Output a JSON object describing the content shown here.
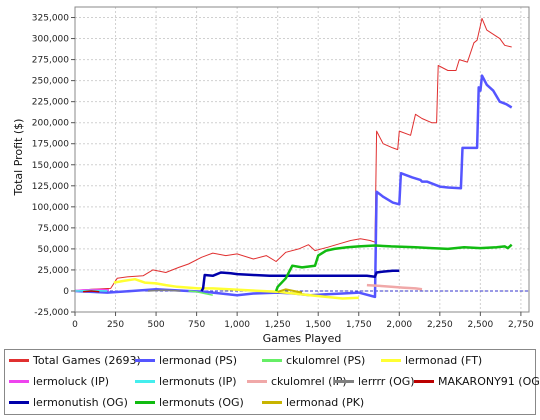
{
  "chart_data": {
    "type": "line",
    "xlabel": "Games Played",
    "ylabel": "Total Profit ($)",
    "xlim": [
      0,
      2800
    ],
    "ylim": [
      -25000,
      337500
    ],
    "x_ticks": [
      0,
      250,
      500,
      750,
      1000,
      1250,
      1500,
      1750,
      2000,
      2250,
      2500,
      2750
    ],
    "x_tick_labels": [
      "0",
      "250",
      "500",
      "750",
      "1,000",
      "1,250",
      "1,500",
      "1,750",
      "2,000",
      "2,250",
      "2,500",
      "2,750"
    ],
    "y_ticks": [
      -25000,
      0,
      25000,
      50000,
      75000,
      100000,
      125000,
      150000,
      175000,
      200000,
      225000,
      250000,
      275000,
      300000,
      325000
    ],
    "y_tick_labels": [
      "-25,000",
      "0",
      "25,000",
      "50,000",
      "75,000",
      "100,000",
      "125,000",
      "150,000",
      "175,000",
      "200,000",
      "225,000",
      "250,000",
      "275,000",
      "300,000",
      "325,000"
    ],
    "grid": true,
    "legend_position": "bottom",
    "series": [
      {
        "name": "Total Games (2693)",
        "color": "#e03030",
        "width": 1,
        "points": [
          [
            0,
            0
          ],
          [
            100,
            2000
          ],
          [
            220,
            3000
          ],
          [
            260,
            15000
          ],
          [
            330,
            17000
          ],
          [
            420,
            18000
          ],
          [
            480,
            25000
          ],
          [
            560,
            22000
          ],
          [
            640,
            28000
          ],
          [
            700,
            32000
          ],
          [
            780,
            40000
          ],
          [
            850,
            45000
          ],
          [
            930,
            42000
          ],
          [
            1000,
            44000
          ],
          [
            1100,
            38000
          ],
          [
            1180,
            42000
          ],
          [
            1240,
            35000
          ],
          [
            1300,
            46000
          ],
          [
            1380,
            50000
          ],
          [
            1440,
            55000
          ],
          [
            1480,
            48000
          ],
          [
            1560,
            52000
          ],
          [
            1630,
            56000
          ],
          [
            1700,
            60000
          ],
          [
            1760,
            62000
          ],
          [
            1820,
            60000
          ],
          [
            1850,
            58000
          ],
          [
            1860,
            190000
          ],
          [
            1900,
            175000
          ],
          [
            1960,
            170000
          ],
          [
            1990,
            168000
          ],
          [
            2000,
            190000
          ],
          [
            2070,
            185000
          ],
          [
            2100,
            210000
          ],
          [
            2140,
            205000
          ],
          [
            2200,
            200000
          ],
          [
            2230,
            200000
          ],
          [
            2240,
            268000
          ],
          [
            2300,
            262000
          ],
          [
            2350,
            262000
          ],
          [
            2370,
            275000
          ],
          [
            2420,
            272000
          ],
          [
            2460,
            295000
          ],
          [
            2480,
            298000
          ],
          [
            2510,
            324000
          ],
          [
            2540,
            310000
          ],
          [
            2580,
            305000
          ],
          [
            2620,
            300000
          ],
          [
            2650,
            292000
          ],
          [
            2693,
            290000
          ]
        ]
      },
      {
        "name": "lermonad (PS)",
        "color": "#5555ff",
        "width": 2.5,
        "points": [
          [
            0,
            0
          ],
          [
            200,
            -2000
          ],
          [
            350,
            0
          ],
          [
            500,
            2000
          ],
          [
            700,
            0
          ],
          [
            800,
            -1000
          ],
          [
            900,
            -3000
          ],
          [
            1000,
            -5000
          ],
          [
            1100,
            -3000
          ],
          [
            1250,
            -2000
          ],
          [
            1350,
            -3000
          ],
          [
            1450,
            -5000
          ],
          [
            1550,
            -4000
          ],
          [
            1650,
            -3000
          ],
          [
            1750,
            -2000
          ],
          [
            1830,
            -6000
          ],
          [
            1850,
            -7000
          ],
          [
            1860,
            118000
          ],
          [
            1900,
            112000
          ],
          [
            1960,
            105000
          ],
          [
            2000,
            103000
          ],
          [
            2010,
            140000
          ],
          [
            2080,
            135000
          ],
          [
            2130,
            132000
          ],
          [
            2140,
            130000
          ],
          [
            2170,
            130000
          ],
          [
            2250,
            124000
          ],
          [
            2300,
            123000
          ],
          [
            2380,
            122000
          ],
          [
            2390,
            170000
          ],
          [
            2420,
            170000
          ],
          [
            2480,
            170000
          ],
          [
            2490,
            242000
          ],
          [
            2500,
            238000
          ],
          [
            2510,
            256000
          ],
          [
            2540,
            245000
          ],
          [
            2580,
            238000
          ],
          [
            2620,
            225000
          ],
          [
            2660,
            222000
          ],
          [
            2693,
            218000
          ]
        ]
      },
      {
        "name": "ckulomrel (PS)",
        "color": "#66ee66",
        "width": 1.5,
        "points": [
          [
            700,
            0
          ],
          [
            750,
            -1000
          ],
          [
            800,
            -3000
          ],
          [
            850,
            -5000
          ]
        ]
      },
      {
        "name": "lermonad (FT)",
        "color": "#ffff33",
        "width": 2.5,
        "points": [
          [
            240,
            10000
          ],
          [
            300,
            12000
          ],
          [
            370,
            14000
          ],
          [
            430,
            10000
          ],
          [
            500,
            9000
          ],
          [
            560,
            7000
          ],
          [
            630,
            5000
          ],
          [
            700,
            4000
          ],
          [
            760,
            3000
          ],
          [
            850,
            3000
          ],
          [
            950,
            2000
          ],
          [
            1050,
            1000
          ],
          [
            1150,
            0
          ],
          [
            1250,
            -1000
          ],
          [
            1350,
            -3000
          ],
          [
            1450,
            -5000
          ],
          [
            1550,
            -7000
          ],
          [
            1650,
            -9000
          ],
          [
            1750,
            -8000
          ]
        ]
      },
      {
        "name": "lermoluck (IP)",
        "color": "#ee44ee",
        "width": 2,
        "points": [
          [
            0,
            0
          ],
          [
            50,
            1000
          ],
          [
            150,
            1500
          ],
          [
            210,
            1000
          ]
        ]
      },
      {
        "name": "lermonuts (IP)",
        "color": "#44eeee",
        "width": 1.5,
        "points": [
          [
            0,
            0
          ],
          [
            100,
            500
          ],
          [
            200,
            0
          ]
        ]
      },
      {
        "name": "ckulomrel (IP)",
        "color": "#f0a8a8",
        "width": 2.5,
        "points": [
          [
            1800,
            7000
          ],
          [
            1880,
            6000
          ],
          [
            1950,
            5000
          ],
          [
            2020,
            4000
          ],
          [
            2100,
            3000
          ],
          [
            2140,
            2000
          ]
        ]
      },
      {
        "name": "lerrrr (OG)",
        "color": "#808080",
        "width": 1.5,
        "points": [
          [
            450,
            0
          ],
          [
            550,
            1000
          ],
          [
            650,
            0
          ]
        ]
      },
      {
        "name": "MAKARONY91 (OG)",
        "color": "#bb0000",
        "width": 1.5,
        "points": [
          [
            50,
            -1000
          ],
          [
            100,
            0
          ],
          [
            150,
            -1000
          ]
        ]
      },
      {
        "name": "lermonutish (OG)",
        "color": "#0000aa",
        "width": 2.5,
        "points": [
          [
            780,
            0
          ],
          [
            790,
            3000
          ],
          [
            800,
            19000
          ],
          [
            850,
            18000
          ],
          [
            900,
            22000
          ],
          [
            960,
            21000
          ],
          [
            1000,
            20000
          ],
          [
            1100,
            19000
          ],
          [
            1200,
            18000
          ],
          [
            1300,
            18000
          ],
          [
            1400,
            18000
          ],
          [
            1500,
            18000
          ],
          [
            1600,
            18000
          ],
          [
            1700,
            18000
          ],
          [
            1800,
            18000
          ],
          [
            1850,
            17000
          ],
          [
            1860,
            22000
          ],
          [
            1900,
            23000
          ],
          [
            1960,
            24000
          ],
          [
            2000,
            24000
          ]
        ]
      },
      {
        "name": "lermonuts (OG)",
        "color": "#11bb11",
        "width": 2.5,
        "points": [
          [
            1240,
            0
          ],
          [
            1250,
            5000
          ],
          [
            1300,
            15000
          ],
          [
            1340,
            30000
          ],
          [
            1400,
            28000
          ],
          [
            1480,
            30000
          ],
          [
            1500,
            42000
          ],
          [
            1550,
            48000
          ],
          [
            1600,
            50000
          ],
          [
            1680,
            52000
          ],
          [
            1750,
            53000
          ],
          [
            1850,
            54000
          ],
          [
            1950,
            53000
          ],
          [
            2100,
            52000
          ],
          [
            2200,
            51000
          ],
          [
            2300,
            50000
          ],
          [
            2400,
            52000
          ],
          [
            2500,
            51000
          ],
          [
            2600,
            52000
          ],
          [
            2650,
            53000
          ],
          [
            2670,
            51000
          ],
          [
            2693,
            55000
          ]
        ]
      },
      {
        "name": "lermonad (PK)",
        "color": "#c8b400",
        "width": 2,
        "points": [
          [
            1250,
            -1000
          ],
          [
            1300,
            2000
          ],
          [
            1350,
            0
          ],
          [
            1400,
            -2000
          ]
        ]
      }
    ]
  },
  "legend": [
    {
      "label": "Total Games (2693)",
      "color": "#e03030"
    },
    {
      "label": "lermonad (PS)",
      "color": "#5555ff"
    },
    {
      "label": "ckulomrel (PS)",
      "color": "#66ee66"
    },
    {
      "label": "lermonad (FT)",
      "color": "#ffff33"
    },
    {
      "label": "lermoluck (IP)",
      "color": "#ee44ee"
    },
    {
      "label": "lermonuts (IP)",
      "color": "#44eeee"
    },
    {
      "label": "ckulomrel (IP)",
      "color": "#f0a8a8"
    },
    {
      "label": "lerrrr (OG)",
      "color": "#808080"
    },
    {
      "label": "MAKARONY91 (OG)",
      "color": "#bb0000"
    },
    {
      "label": "lermonutish (OG)",
      "color": "#0000aa"
    },
    {
      "label": "lermonuts (OG)",
      "color": "#11bb11"
    },
    {
      "label": "lermonad (PK)",
      "color": "#c8b400"
    }
  ]
}
